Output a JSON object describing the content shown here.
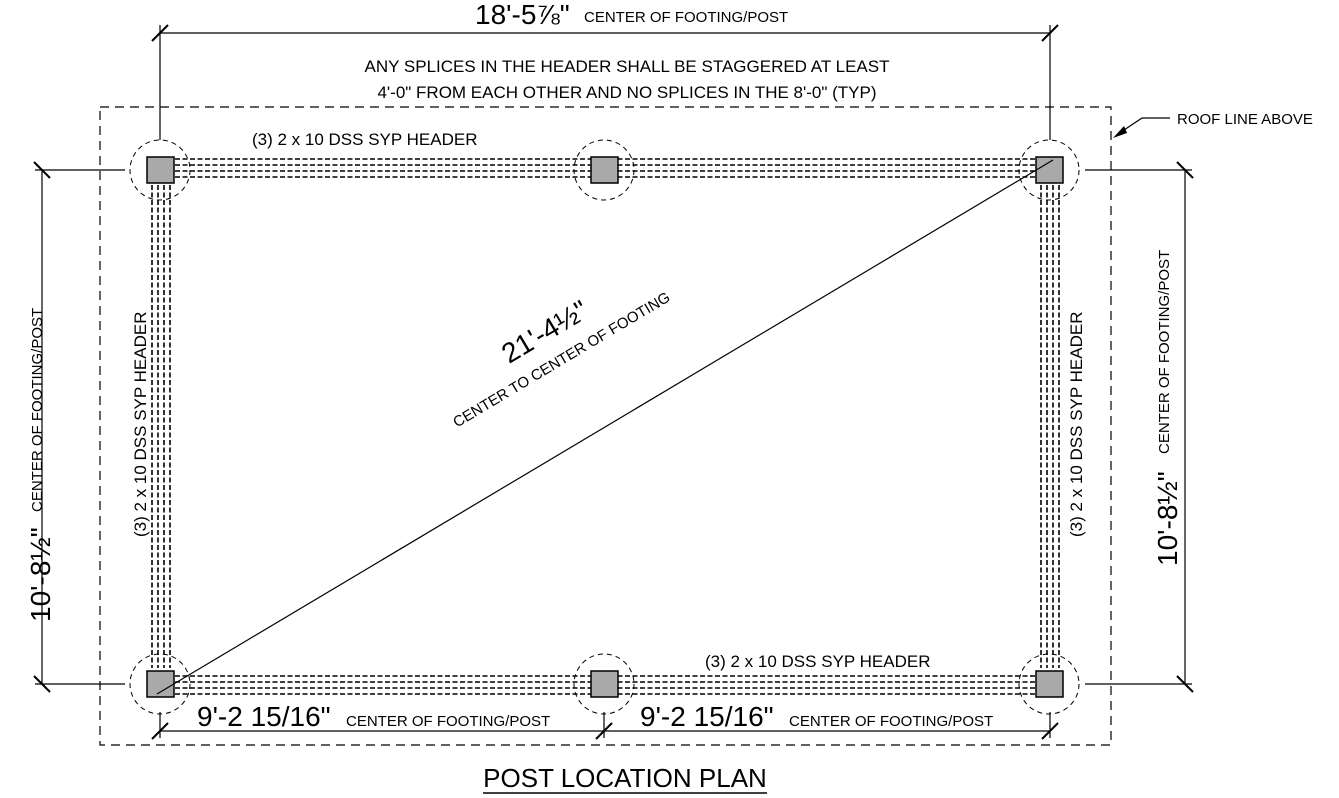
{
  "title": "POST LOCATION PLAN",
  "note": {
    "line1": "ANY SPLICES IN THE HEADER SHALL BE STAGGERED AT LEAST",
    "line2": "4'-0\" FROM EACH OTHER AND NO SPLICES IN THE 8'-0\" (TYP)"
  },
  "roof_line_label": "ROOF LINE ABOVE",
  "dimensions": {
    "top": {
      "value": "18'-5⅞\"",
      "label": "CENTER OF FOOTING/POST"
    },
    "left": {
      "value": "10'-8½\"",
      "label": "CENTER OF FOOTING/POST"
    },
    "right": {
      "value": "10'-8½\"",
      "label": "CENTER OF FOOTING/POST"
    },
    "bottom_left": {
      "value": "9'-2 15/16\"",
      "label": "CENTER OF FOOTING/POST"
    },
    "bottom_right": {
      "value": "9'-2 15/16\"",
      "label": "CENTER OF FOOTING/POST"
    },
    "diagonal": {
      "value": "21'-4½\"",
      "label": "CENTER TO CENTER OF FOOTING"
    }
  },
  "headers": {
    "top": "(3) 2 x 10 DSS SYP HEADER",
    "bottom": "(3) 2 x 10 DSS SYP HEADER",
    "left": "(3) 2 x 10 DSS SYP HEADER",
    "right": "(3) 2 x 10 DSS SYP HEADER"
  }
}
